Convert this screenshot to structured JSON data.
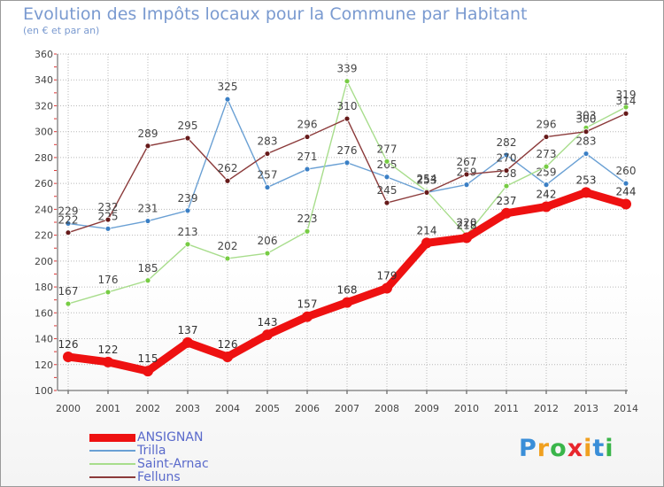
{
  "chart_data": {
    "type": "line",
    "title": "Evolution des Impôts locaux pour la Commune par Habitant",
    "subtitle": "(en € et par an)",
    "xlabel": "",
    "ylabel": "",
    "ylim": [
      100,
      360
    ],
    "yticks": [
      "100",
      "120",
      "140",
      "160",
      "180",
      "200",
      "220",
      "240",
      "260",
      "280",
      "300",
      "320",
      "340",
      "360"
    ],
    "categories": [
      "2000",
      "2001",
      "2002",
      "2003",
      "2004",
      "2005",
      "2006",
      "2007",
      "2008",
      "2009",
      "2010",
      "2011",
      "2012",
      "2013",
      "2014"
    ],
    "grid": true,
    "legend_position": "bottom-left",
    "series": [
      {
        "name": "ANSIGNAN",
        "color": "#ee1111",
        "marker": "#ee1111",
        "values": [
          126,
          122,
          115,
          137,
          126,
          143,
          157,
          168,
          179,
          214,
          218,
          237,
          242,
          253,
          244
        ],
        "labels": [
          "126",
          "122",
          "115",
          "137",
          "126",
          "143",
          "157",
          "168",
          "179",
          "214",
          "218",
          "237",
          "242",
          "253",
          "244"
        ]
      },
      {
        "name": "Trilla",
        "color": "#6aa0d4",
        "marker": "#3a7fc5",
        "values": [
          229,
          225,
          231,
          239,
          325,
          257,
          271,
          276,
          265,
          253,
          259,
          282,
          259,
          283,
          260
        ],
        "labels": [
          "229",
          "225",
          "231",
          "239",
          "325",
          "257",
          "271",
          "276",
          "265",
          "253",
          "259",
          "282",
          "259",
          "283",
          "260"
        ]
      },
      {
        "name": "Saint-Arnac",
        "color": "#a8dd8c",
        "marker": "#77cc44",
        "values": [
          167,
          176,
          185,
          213,
          202,
          206,
          223,
          339,
          277,
          254,
          220,
          258,
          273,
          303,
          319
        ],
        "labels": [
          "167",
          "176",
          "185",
          "213",
          "202",
          "206",
          "223",
          "339",
          "277",
          "254",
          "220",
          "258",
          "273",
          "303",
          "319"
        ]
      },
      {
        "name": "Felluns",
        "color": "#8b3a3a",
        "marker": "#661a1a",
        "values": [
          222,
          232,
          289,
          295,
          262,
          283,
          296,
          310,
          245,
          253,
          267,
          270,
          296,
          300,
          314
        ],
        "labels": [
          "222",
          "232",
          "289",
          "295",
          "262",
          "283",
          "296",
          "310",
          "245",
          "253",
          "267",
          "270",
          "296",
          "300",
          "314"
        ]
      }
    ]
  },
  "brand": {
    "letters": [
      "P",
      "r",
      "o",
      "x",
      "i",
      "t",
      "i"
    ],
    "colors": [
      "#3a8ed8",
      "#f0a020",
      "#3ab54a",
      "#e8262d",
      "#f0a020",
      "#3a8ed8",
      "#3ab54a"
    ]
  }
}
